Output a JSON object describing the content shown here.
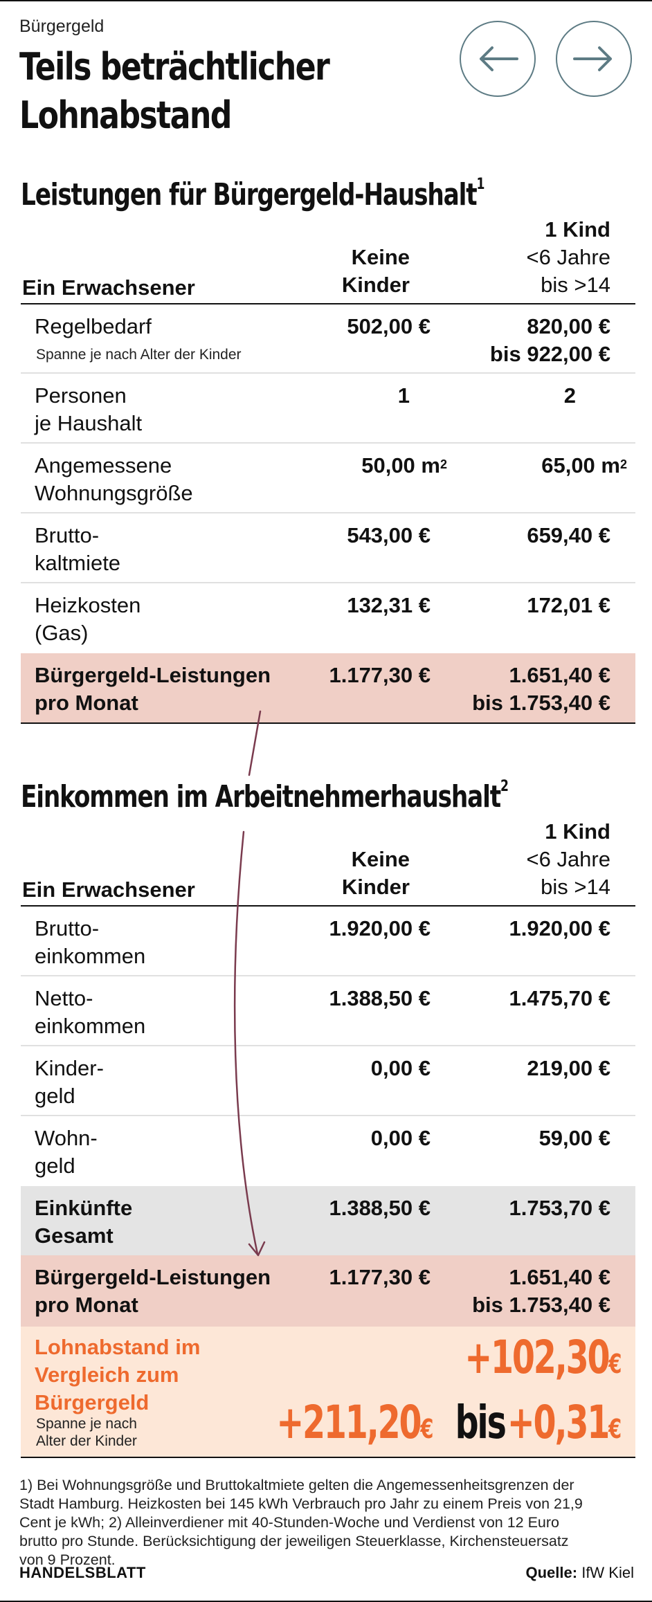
{
  "kicker": "Bürgergeld",
  "headline": "Teils beträchtlicher Lohnabstand",
  "nav": {
    "prev_icon": "arrow-left-icon",
    "next_icon": "arrow-right-icon",
    "accent": "#5d7b84"
  },
  "section1": {
    "title": "Leistungen für Bürgergeld-Haushalt",
    "footnote_ref": "1",
    "label_header": "Ein Erwachsener",
    "col2_header": [
      "Keine",
      "Kinder"
    ],
    "col3_header": [
      "1 Kind",
      "<6 Jahre",
      "bis >14"
    ],
    "rows": [
      {
        "label": [
          "Regelbedarf"
        ],
        "sub": "Spanne je nach Alter der Kinder",
        "v2": "502,00 €",
        "v3": [
          "820,00 €",
          "bis 922,00 €"
        ]
      },
      {
        "label": [
          "Personen",
          "je Haushalt"
        ],
        "v2": "1",
        "v3": [
          "2"
        ]
      },
      {
        "label": [
          "Angemessene",
          "Wohnungsgröße"
        ],
        "v2": "50,00 m",
        "v2_sup": "2",
        "v3": [
          "65,00 m"
        ],
        "v3_sup": "2"
      },
      {
        "label": [
          "Brutto-",
          "kaltmiete"
        ],
        "v2": "543,00 €",
        "v3": [
          "659,40 €"
        ]
      },
      {
        "label": [
          "Heizkosten",
          "(Gas)"
        ],
        "v2": "132,31 €",
        "v3": [
          "172,01 €"
        ]
      }
    ],
    "total": {
      "label": [
        "Bürgergeld-Leistungen",
        "pro Monat"
      ],
      "v2": "1.177,30 €",
      "v3": [
        "1.651,40 €",
        "bis 1.753,40 €"
      ]
    }
  },
  "section2": {
    "title": "Einkommen im Arbeitnehmerhaushalt",
    "footnote_ref": "2",
    "label_header": "Ein Erwachsener",
    "col2_header": [
      "Keine",
      "Kinder"
    ],
    "col3_header": [
      "1 Kind",
      "<6 Jahre",
      "bis >14"
    ],
    "rows": [
      {
        "label": [
          "Brutto-",
          "einkommen"
        ],
        "v2": "1.920,00 €",
        "v3": [
          "1.920,00 €"
        ]
      },
      {
        "label": [
          "Netto-",
          "einkommen"
        ],
        "v2": "1.388,50 €",
        "v3": [
          "1.475,70 €"
        ]
      },
      {
        "label": [
          "Kinder-",
          "geld"
        ],
        "v2": "0,00 €",
        "v3": [
          "219,00 €"
        ]
      },
      {
        "label": [
          "Wohn-",
          "geld"
        ],
        "v2": "0,00 €",
        "v3": [
          "59,00 €"
        ]
      }
    ],
    "income_total": {
      "label": [
        "Einkünfte",
        "Gesamt"
      ],
      "v2": "1.388,50 €",
      "v3": [
        "1.753,70 €"
      ]
    },
    "benefit_total": {
      "label": [
        "Bürgergeld-Leistungen",
        "pro Monat"
      ],
      "v2": "1.177,30 €",
      "v3": [
        "1.651,40 €",
        "bis 1.753,40 €"
      ]
    },
    "gap": {
      "label": [
        "Lohnabstand im",
        "Vergleich zum",
        "Bürgergeld"
      ],
      "sub": [
        "Spanne je nach",
        "Alter der Kinder"
      ],
      "v2": "+211,20",
      "v3_top": "+102,30",
      "v3_mid": "bis",
      "v3_bottom": "+0,31",
      "currency": "€"
    }
  },
  "footnotes": [
    "1) Bei Wohnungsgröße und Bruttokaltmiete gelten die Angemessenheitsgrenzen der",
    "Stadt Hamburg. Heizkosten bei 145 kWh Verbrauch pro Jahr zu einem Preis von 21,9",
    "Cent je kWh; 2) Alleinverdiener mit 40-Stunden-Woche und Verdienst von 12 Euro",
    "brutto pro Stunde. Berücksichtigung der jeweiligen Steuerklasse, Kirchensteuersatz",
    "von 9 Prozent."
  ],
  "brand": "HANDELSBLATT",
  "source_label": "Quelle:",
  "source_value": "IfW Kiel",
  "colors": {
    "pink": "#f0cfc6",
    "grey": "#e4e4e4",
    "peach": "#fde7d7",
    "orange": "#ee6a2e",
    "arrow": "#7a3b4e"
  }
}
